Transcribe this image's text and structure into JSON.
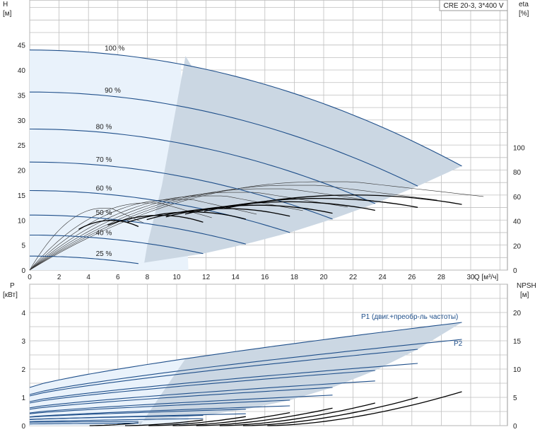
{
  "chart_data": [
    {
      "type": "line",
      "title_box": "CRE 20-3, 3*400 V",
      "y_left_unit_name": "H",
      "y_left_unit": "[м]",
      "y_right_name": "eta",
      "y_right_unit": "[%]",
      "x_axis_label": "Q [м³/ч]",
      "x_ticks": [
        "0",
        "2",
        "4",
        "6",
        "8",
        "10",
        "12",
        "14",
        "16",
        "18",
        "20",
        "22",
        "24",
        "26",
        "28",
        "30"
      ],
      "y_left_ticks": [
        "0",
        "5",
        "10",
        "15",
        "20",
        "25",
        "30",
        "35",
        "40",
        "45"
      ],
      "y_right_ticks": [
        "0",
        "20",
        "40",
        "60",
        "80",
        "100"
      ],
      "xlim": [
        0,
        32.5
      ],
      "ylim_left": [
        0,
        54
      ],
      "ylim_right": [
        0,
        100
      ],
      "speed_labels": [
        {
          "text": "100 %",
          "speed": 1.0
        },
        {
          "text": "90 %",
          "speed": 0.9
        },
        {
          "text": "80 %",
          "speed": 0.8
        },
        {
          "text": "70 %",
          "speed": 0.7
        },
        {
          "text": "60 %",
          "speed": 0.6
        },
        {
          "text": "50 %",
          "speed": 0.5
        },
        {
          "text": "40 %",
          "speed": 0.4
        },
        {
          "text": "25 %",
          "speed": 0.25
        }
      ],
      "series": [
        {
          "speed": 1.0,
          "h_shutoff": 44.0,
          "q_end": 29.4,
          "h_end": 20.8
        },
        {
          "speed": 0.9,
          "h_shutoff": 35.6,
          "q_end": 26.4,
          "h_end": 16.8
        },
        {
          "speed": 0.8,
          "h_shutoff": 28.2,
          "q_end": 23.5,
          "h_end": 13.3
        },
        {
          "speed": 0.7,
          "h_shutoff": 21.6,
          "q_end": 20.6,
          "h_end": 10.2
        },
        {
          "speed": 0.6,
          "h_shutoff": 15.9,
          "q_end": 17.7,
          "h_end": 7.5
        },
        {
          "speed": 0.5,
          "h_shutoff": 11.0,
          "q_end": 14.7,
          "h_end": 5.2
        },
        {
          "speed": 0.4,
          "h_shutoff": 7.0,
          "q_end": 11.8,
          "h_end": 3.3
        },
        {
          "speed": 0.25,
          "h_shutoff": 2.8,
          "q_end": 7.4,
          "h_end": 1.3
        }
      ],
      "efficiency_peak_percent": 72,
      "colors": {
        "curve": "#1f4f8a",
        "region": "#cbd7e3",
        "region_light": "#e9f2fb",
        "grid": "#bfbfbf"
      }
    },
    {
      "type": "line",
      "y_left_unit_name": "P",
      "y_left_unit": "[кВт]",
      "y_right_name": "NPSH",
      "y_right_unit": "[м]",
      "y_left_ticks": [
        "0",
        "1",
        "2",
        "3",
        "4"
      ],
      "y_right_ticks": [
        "0",
        "5",
        "10",
        "15",
        "20"
      ],
      "ylim_left": [
        0,
        5
      ],
      "ylim_right": [
        0,
        25
      ],
      "annotations": {
        "p1": "P1 (двиг.+преобр-ль частоты)",
        "p2": "P2"
      },
      "p1_series": [
        {
          "speed": 1.0,
          "p_start": 1.35,
          "p_end": 3.65
        },
        {
          "speed": 0.9,
          "p_start": 1.05,
          "p_end": 2.7
        },
        {
          "speed": 0.8,
          "p_start": 0.8,
          "p_end": 1.95
        },
        {
          "speed": 0.7,
          "p_start": 0.58,
          "p_end": 1.35
        },
        {
          "speed": 0.6,
          "p_start": 0.42,
          "p_end": 0.9
        },
        {
          "speed": 0.5,
          "p_start": 0.3,
          "p_end": 0.58
        },
        {
          "speed": 0.4,
          "p_start": 0.22,
          "p_end": 0.36
        },
        {
          "speed": 0.25,
          "p_start": 0.12,
          "p_end": 0.15
        }
      ],
      "p2_series": [
        {
          "speed": 1.0,
          "p_start": 1.1,
          "p_end": 3.05
        },
        {
          "speed": 0.9,
          "p_start": 0.85,
          "p_end": 2.2
        },
        {
          "speed": 0.8,
          "p_start": 0.63,
          "p_end": 1.58
        },
        {
          "speed": 0.7,
          "p_start": 0.45,
          "p_end": 1.08
        },
        {
          "speed": 0.6,
          "p_start": 0.31,
          "p_end": 0.7
        },
        {
          "speed": 0.5,
          "p_start": 0.21,
          "p_end": 0.42
        },
        {
          "speed": 0.4,
          "p_start": 0.14,
          "p_end": 0.25
        },
        {
          "speed": 0.25,
          "p_start": 0.06,
          "p_end": 0.09
        }
      ],
      "npsh_end": [
        6.0,
        5.0,
        4.0,
        3.1,
        2.3,
        1.6,
        1.0,
        0.5
      ],
      "colors": {
        "curve": "#1f4f8a",
        "region": "#cbd7e3",
        "region_light": "#e9f2fb",
        "grid": "#bfbfbf"
      }
    }
  ]
}
